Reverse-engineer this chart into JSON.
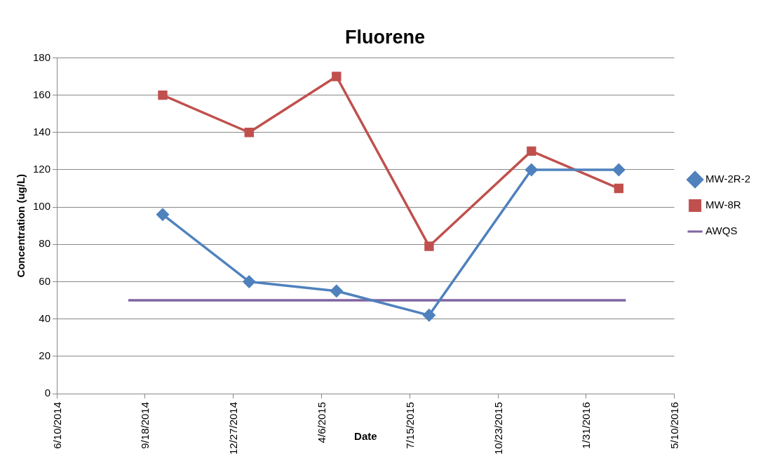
{
  "chart_data": {
    "type": "line",
    "title": "Fluorene",
    "xlabel": "Date",
    "ylabel": "Concentration (ug/L)",
    "xlim": [
      "2014-06-10",
      "2016-05-10"
    ],
    "xticks": [
      {
        "value": "2014-06-10",
        "label": "6/10/2014"
      },
      {
        "value": "2014-09-18",
        "label": "9/18/2014"
      },
      {
        "value": "2014-12-27",
        "label": "12/27/2014"
      },
      {
        "value": "2015-04-06",
        "label": "4/6/2015"
      },
      {
        "value": "2015-07-15",
        "label": "7/15/2015"
      },
      {
        "value": "2015-10-23",
        "label": "10/23/2015"
      },
      {
        "value": "2016-01-31",
        "label": "1/31/2016"
      },
      {
        "value": "2016-05-10",
        "label": "5/10/2016"
      }
    ],
    "ylim": [
      0,
      180
    ],
    "yticks": [
      0,
      20,
      40,
      60,
      80,
      100,
      120,
      140,
      160,
      180
    ],
    "grid": "y",
    "legend": "right",
    "series": [
      {
        "name": "MW-2R-2",
        "color": "#4f81bd",
        "marker": "diamond",
        "x": [
          "2014-10-08",
          "2015-01-14",
          "2015-04-23",
          "2015-08-06",
          "2015-11-30",
          "2016-03-08"
        ],
        "values": [
          96,
          60,
          55,
          42,
          120,
          120
        ]
      },
      {
        "name": "MW-8R",
        "color": "#c0504d",
        "marker": "square",
        "x": [
          "2014-10-08",
          "2015-01-14",
          "2015-04-23",
          "2015-08-06",
          "2015-11-30",
          "2016-03-08"
        ],
        "values": [
          160,
          140,
          170,
          79,
          130,
          110
        ]
      },
      {
        "name": "AWQS",
        "color": "#8064a2",
        "marker": "none",
        "x": [
          "2014-08-30",
          "2016-03-16"
        ],
        "values": [
          50,
          50
        ]
      }
    ]
  }
}
